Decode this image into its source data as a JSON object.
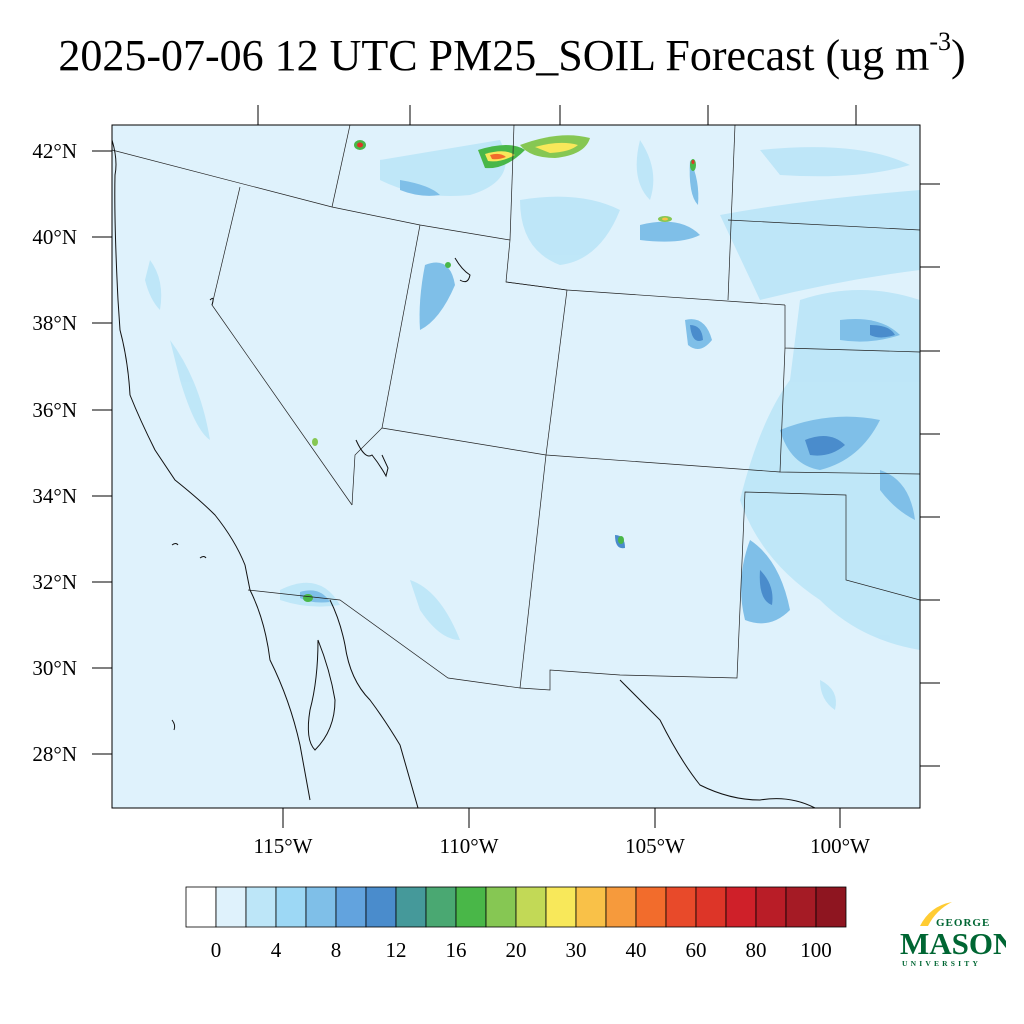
{
  "title": {
    "main": "2025-07-06 12 UTC PM25_SOIL Forecast (ug m",
    "exponent": "-3",
    "close": ")"
  },
  "map": {
    "lat_labels": [
      "42°N",
      "40°N",
      "38°N",
      "36°N",
      "34°N",
      "32°N",
      "30°N",
      "28°N"
    ],
    "lon_labels": [
      "115°W",
      "110°W",
      "105°W",
      "100°W"
    ],
    "background_color": "#dff2fc"
  },
  "colorbar": {
    "labels": [
      "0",
      "4",
      "8",
      "12",
      "16",
      "20",
      "30",
      "40",
      "60",
      "80",
      "100"
    ],
    "colors": [
      "#ffffff",
      "#dff2fc",
      "#bde6f8",
      "#9dd8f5",
      "#7fbfe8",
      "#62a3de",
      "#4a8ccc",
      "#45999a",
      "#4aa872",
      "#49b748",
      "#86c753",
      "#c2d956",
      "#f8e85a",
      "#f9c148",
      "#f69a3c",
      "#f26c2c",
      "#e84a2a",
      "#dd3528",
      "#cf2029",
      "#b91d27",
      "#a51b25",
      "#8e1520"
    ]
  },
  "logo": {
    "line1": "GEORGE",
    "line2": "MASON",
    "line3": "UNIVERSITY",
    "green": "#006633",
    "gold": "#ffcc33"
  }
}
